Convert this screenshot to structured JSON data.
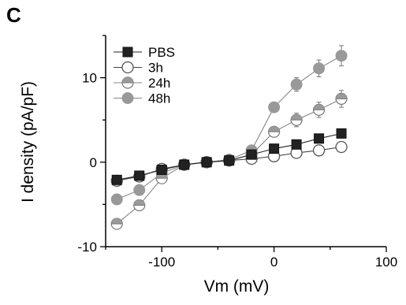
{
  "panel_label": "C",
  "chart_data": {
    "type": "line",
    "xlabel": "Vm (mV)",
    "ylabel": "I density (pA/pF)",
    "xlim": [
      -150,
      100
    ],
    "ylim": [
      -10,
      15
    ],
    "xticks": [
      -100,
      0,
      100
    ],
    "yticks": [
      -10,
      0,
      10
    ],
    "grid": false,
    "legend_position": "top-left",
    "series": [
      {
        "name": "PBS",
        "marker": "square",
        "marker_fill": "#222222",
        "line_color": "#222222",
        "x": [
          -140,
          -120,
          -100,
          -80,
          -60,
          -40,
          -20,
          0,
          20,
          40,
          60
        ],
        "y": [
          -2.1,
          -1.6,
          -0.9,
          -0.3,
          0.0,
          0.2,
          0.9,
          1.6,
          2.1,
          2.8,
          3.4
        ],
        "err": [
          0.0,
          0.0,
          0.0,
          0.0,
          0.0,
          0.0,
          0.0,
          0.0,
          0.0,
          0.0,
          0.0
        ]
      },
      {
        "name": "3h",
        "marker": "circle-open",
        "marker_fill": "#ffffff",
        "line_color": "#444444",
        "x": [
          -140,
          -120,
          -100,
          -80,
          -60,
          -40,
          -20,
          0,
          20,
          40,
          60
        ],
        "y": [
          -2.2,
          -1.7,
          -0.8,
          -0.3,
          0.0,
          0.2,
          0.4,
          0.7,
          1.1,
          1.4,
          1.8
        ],
        "err": [
          0.3,
          0.2,
          0.2,
          0.1,
          0.0,
          0.1,
          0.2,
          0.2,
          0.3,
          0.3,
          0.4
        ]
      },
      {
        "name": "24h",
        "marker": "circle-half",
        "marker_fill": "#9a9a9a",
        "line_color": "#888888",
        "x": [
          -140,
          -120,
          -100,
          -80,
          -60,
          -40,
          -20,
          0,
          20,
          40,
          60
        ],
        "y": [
          -7.3,
          -5.1,
          -1.9,
          -0.3,
          0.0,
          0.2,
          0.9,
          3.6,
          5.0,
          6.2,
          7.5
        ],
        "err": [
          0.4,
          0.4,
          0.3,
          0.2,
          0.0,
          0.1,
          0.3,
          0.5,
          0.8,
          0.9,
          1.0
        ]
      },
      {
        "name": "48h",
        "marker": "circle",
        "marker_fill": "#999999",
        "line_color": "#888888",
        "x": [
          -140,
          -120,
          -100,
          -80,
          -60,
          -40,
          -20,
          0,
          20,
          40,
          60
        ],
        "y": [
          -4.4,
          -3.3,
          -1.3,
          -0.3,
          0.0,
          0.3,
          1.4,
          6.5,
          9.2,
          11.1,
          12.6
        ],
        "err": [
          0.3,
          0.2,
          0.3,
          0.1,
          0.0,
          0.1,
          0.3,
          0.5,
          0.8,
          1.0,
          1.2
        ]
      }
    ]
  }
}
